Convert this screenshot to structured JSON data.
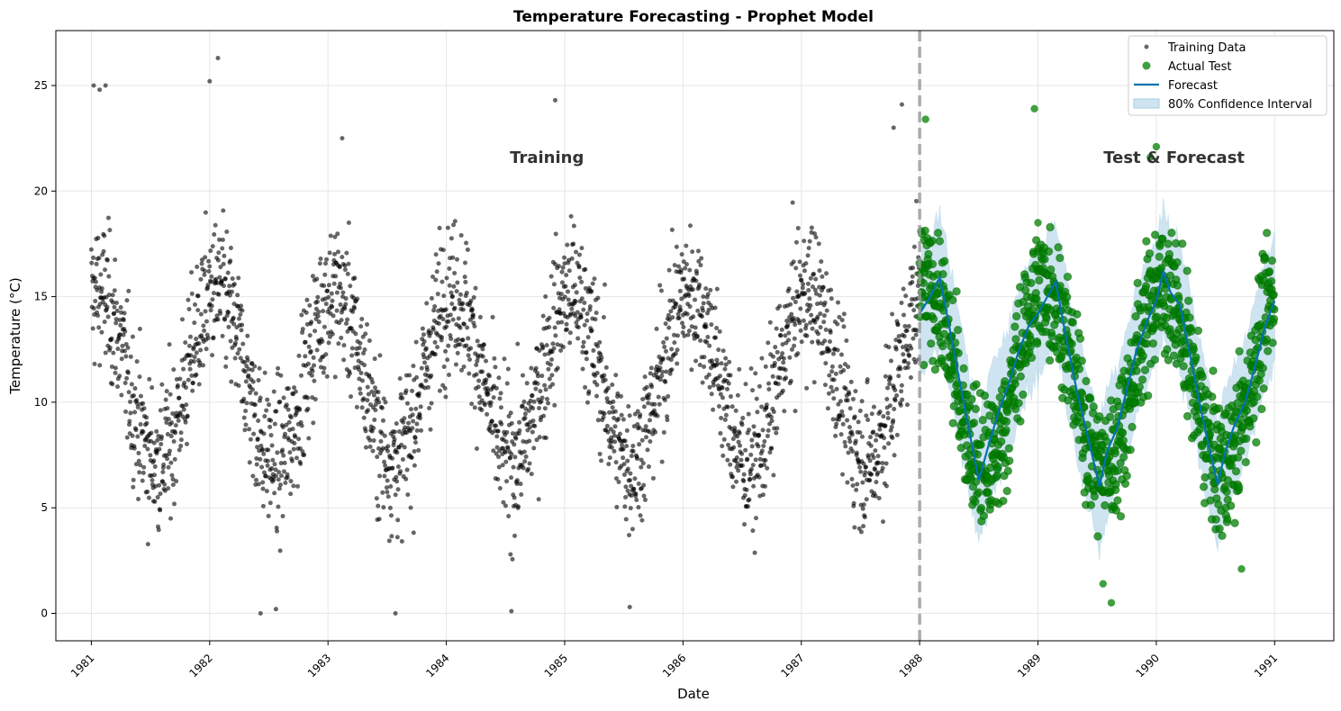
{
  "chart_data": {
    "type": "line",
    "title": "Temperature Forecasting - Prophet Model",
    "xlabel": "Date",
    "ylabel": "Temperature (°C)",
    "xlim": [
      1980.7,
      1991.5
    ],
    "ylim": [
      -1.3,
      27.6
    ],
    "x_ticks": [
      "1981",
      "1982",
      "1983",
      "1984",
      "1985",
      "1986",
      "1987",
      "1988",
      "1989",
      "1990",
      "1991"
    ],
    "y_ticks": [
      0,
      5,
      10,
      15,
      20,
      25
    ],
    "grid": true,
    "legend_position": "top-right",
    "split_date": "1988",
    "annotations": [
      {
        "text": "Training",
        "x": 1984.85,
        "y": 21.6
      },
      {
        "text": "Test & Forecast",
        "x": 1990.15,
        "y": 21.6
      }
    ],
    "series": [
      {
        "name": "Training Data",
        "kind": "scatter",
        "color": "#000000",
        "x_range": [
          1981.0,
          1988.0
        ],
        "seasonal_model": {
          "mean": 11.2,
          "amplitude": 4.0,
          "peak_month": "Jan"
        },
        "extremes": [
          {
            "x": 1981.02,
            "y": 25.0
          },
          {
            "x": 1981.07,
            "y": 24.8
          },
          {
            "x": 1981.12,
            "y": 25.0
          },
          {
            "x": 1982.07,
            "y": 26.3
          },
          {
            "x": 1982.0,
            "y": 25.2
          },
          {
            "x": 1982.43,
            "y": 0.0
          },
          {
            "x": 1982.56,
            "y": 0.2
          },
          {
            "x": 1983.57,
            "y": 0.0
          },
          {
            "x": 1984.55,
            "y": 0.1
          },
          {
            "x": 1984.92,
            "y": 24.3
          },
          {
            "x": 1985.55,
            "y": 0.3
          },
          {
            "x": 1983.12,
            "y": 22.5
          },
          {
            "x": 1987.85,
            "y": 24.1
          },
          {
            "x": 1987.78,
            "y": 23.0
          }
        ]
      },
      {
        "name": "Actual Test",
        "kind": "scatter",
        "color": "#008000",
        "x_range": [
          1988.0,
          1991.0
        ],
        "seasonal_model": {
          "mean": 11.2,
          "amplitude": 4.3,
          "peak_month": "Jan"
        },
        "extremes": [
          {
            "x": 1988.05,
            "y": 23.4
          },
          {
            "x": 1988.97,
            "y": 23.9
          },
          {
            "x": 1989.0,
            "y": 18.5
          },
          {
            "x": 1989.62,
            "y": 0.5
          },
          {
            "x": 1989.55,
            "y": 1.4
          },
          {
            "x": 1990.0,
            "y": 22.1
          },
          {
            "x": 1989.95,
            "y": 21.6
          },
          {
            "x": 1990.72,
            "y": 2.1
          }
        ]
      },
      {
        "name": "Forecast",
        "kind": "line",
        "color": "#0072B2",
        "points": [
          {
            "x": 1988.0,
            "y": 14.2
          },
          {
            "x": 1988.08,
            "y": 14.9
          },
          {
            "x": 1988.17,
            "y": 15.9
          },
          {
            "x": 1988.25,
            "y": 13.6
          },
          {
            "x": 1988.33,
            "y": 11.2
          },
          {
            "x": 1988.42,
            "y": 8.6
          },
          {
            "x": 1988.5,
            "y": 6.3
          },
          {
            "x": 1988.58,
            "y": 7.9
          },
          {
            "x": 1988.67,
            "y": 9.6
          },
          {
            "x": 1988.75,
            "y": 10.8
          },
          {
            "x": 1988.83,
            "y": 12.3
          },
          {
            "x": 1988.92,
            "y": 13.6
          },
          {
            "x": 1989.0,
            "y": 14.2
          },
          {
            "x": 1989.08,
            "y": 15.0
          },
          {
            "x": 1989.15,
            "y": 15.7
          },
          {
            "x": 1989.25,
            "y": 12.7
          },
          {
            "x": 1989.33,
            "y": 10.5
          },
          {
            "x": 1989.42,
            "y": 8.4
          },
          {
            "x": 1989.52,
            "y": 6.0
          },
          {
            "x": 1989.58,
            "y": 7.6
          },
          {
            "x": 1989.67,
            "y": 8.8
          },
          {
            "x": 1989.75,
            "y": 10.6
          },
          {
            "x": 1989.83,
            "y": 12.4
          },
          {
            "x": 1989.92,
            "y": 13.8
          },
          {
            "x": 1990.0,
            "y": 14.8
          },
          {
            "x": 1990.06,
            "y": 16.2
          },
          {
            "x": 1990.12,
            "y": 15.2
          },
          {
            "x": 1990.2,
            "y": 14.6
          },
          {
            "x": 1990.28,
            "y": 12.4
          },
          {
            "x": 1990.36,
            "y": 10.1
          },
          {
            "x": 1990.44,
            "y": 8.0
          },
          {
            "x": 1990.52,
            "y": 6.1
          },
          {
            "x": 1990.58,
            "y": 7.6
          },
          {
            "x": 1990.66,
            "y": 8.9
          },
          {
            "x": 1990.75,
            "y": 10.0
          },
          {
            "x": 1990.83,
            "y": 11.6
          },
          {
            "x": 1990.92,
            "y": 13.6
          },
          {
            "x": 1991.0,
            "y": 14.8
          }
        ]
      },
      {
        "name": "80% Confidence Interval",
        "kind": "band",
        "color": "#a6cee3",
        "half_width": 3.0
      }
    ]
  }
}
